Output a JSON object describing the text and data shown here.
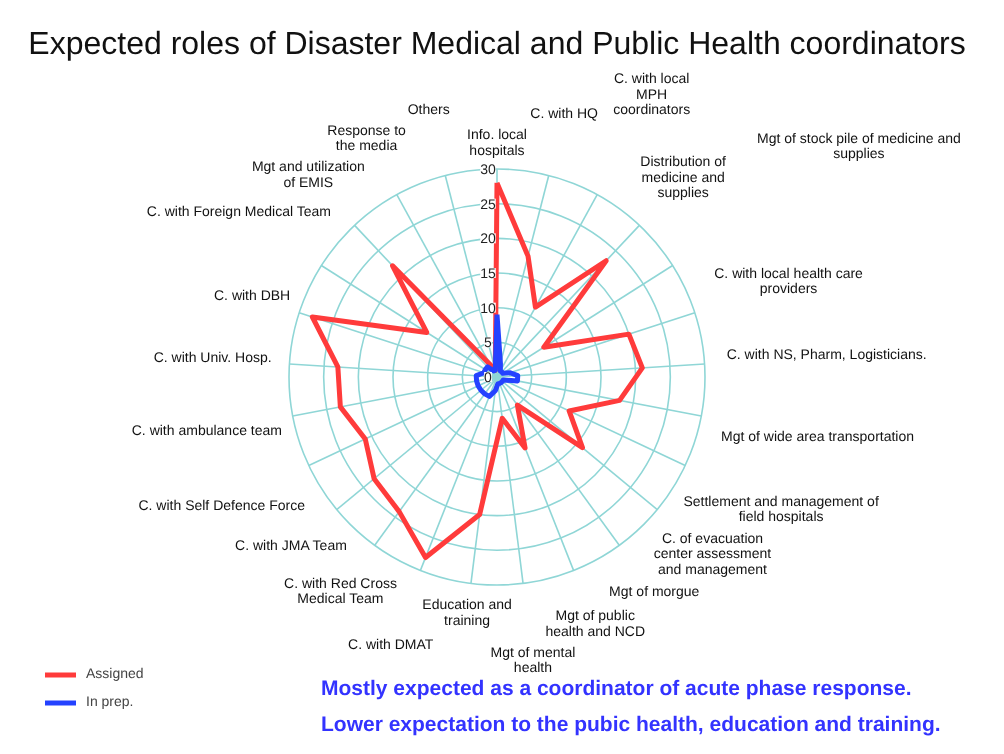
{
  "chart_data": {
    "type": "radar",
    "title": "Expected roles of Disaster Medical and Public Health coordinators",
    "categories": [
      "Info. local hospitals",
      "C. with HQ",
      "C. with local MPH coordinators",
      "Distribution of medicine and supplies",
      "Mgt of stock pile of medicine and supplies",
      "C. with local health care providers",
      "C. with NS, Pharm, Logisticians.",
      "Mgt of wide area transportation",
      "Settlement and management of field hospitals",
      "C. of evacuation center assessment and management",
      "Mgt of morgue",
      "Mgt of public health and NCD",
      "Mgt of mental health",
      "Education and training",
      "C. with DMAT",
      "C. with Red Cross Medical Team",
      "C. with JMA Team",
      "C. with Self Defence Force",
      "C. with ambulance team",
      "C. with Univ. Hosp.",
      "C. with DBH",
      "C. with Foreign Medical Team",
      "Mgt and utilization of EMIS",
      "Response to the media",
      "Others"
    ],
    "series": [
      {
        "name": "Assigned",
        "color": "#ff3b3b",
        "values": [
          28,
          18,
          11.5,
          23,
          8,
          20,
          21,
          18,
          11.5,
          16,
          5,
          11,
          6,
          20,
          28,
          24,
          23,
          21,
          23,
          23,
          28,
          12,
          22,
          2,
          1
        ]
      },
      {
        "name": "In prep.",
        "color": "#2442ff",
        "values": [
          9,
          2,
          1,
          1,
          1,
          2,
          3,
          3,
          1,
          1,
          1,
          1,
          1,
          2,
          3,
          3,
          3,
          3,
          3,
          3,
          2,
          2,
          2,
          1,
          1
        ]
      }
    ],
    "ylim": [
      0,
      30
    ],
    "yticks": [
      0,
      5,
      10,
      15,
      20,
      25,
      30
    ],
    "grid": true,
    "legend": "bottom left",
    "annotations": [
      "Mostly expected as a coordinator of acute phase response.",
      "Lower expectation to the pubic health, education and training."
    ]
  }
}
